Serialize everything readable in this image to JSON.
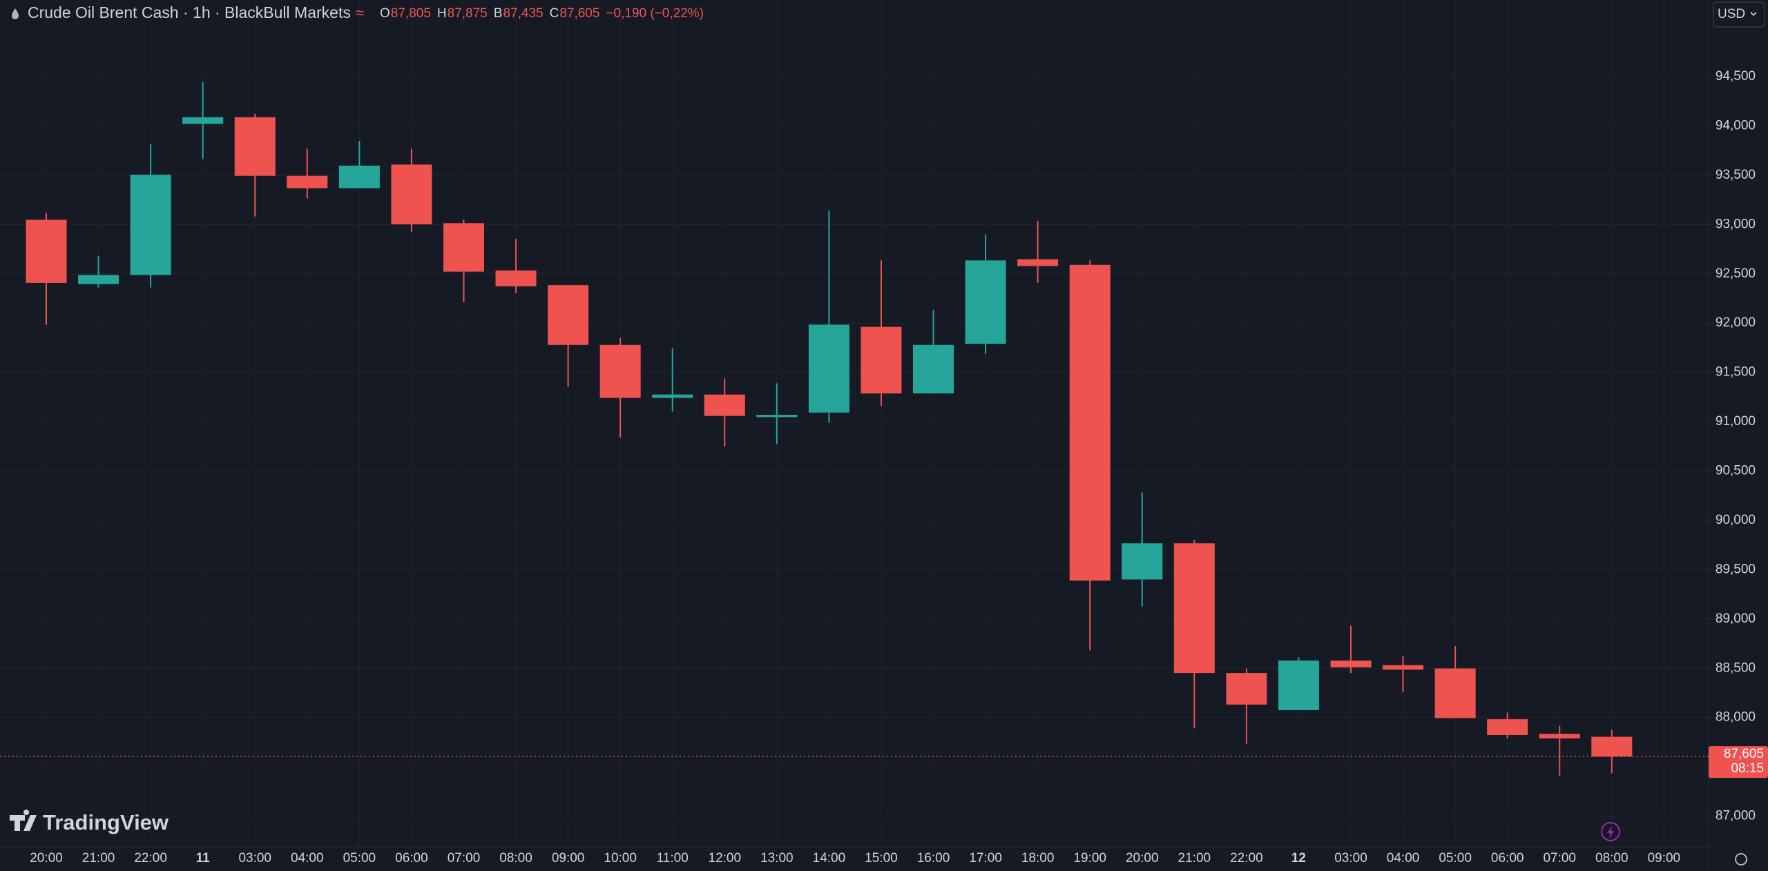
{
  "chart_data": {
    "type": "candlestick",
    "title": "Crude Oil Brent Cash · 1h · BlackBull Markets",
    "legend_ohlc": [
      {
        "key": "O",
        "value": "87,805"
      },
      {
        "key": "H",
        "value": "87,875"
      },
      {
        "key": "B",
        "value": "87,435"
      },
      {
        "key": "C",
        "value": "87,605"
      }
    ],
    "change": "−0,190 (−0,22%)",
    "currency": "USD",
    "brand": "TradingView",
    "categories": [
      "20:00",
      "21:00",
      "22:00",
      "11",
      "03:00",
      "04:00",
      "05:00",
      "06:00",
      "07:00",
      "08:00",
      "09:00",
      "10:00",
      "11:00",
      "12:00",
      "13:00",
      "14:00",
      "15:00",
      "16:00",
      "17:00",
      "18:00",
      "19:00",
      "20:00",
      "21:00",
      "22:00",
      "12",
      "03:00",
      "04:00",
      "05:00",
      "06:00",
      "07:00",
      "08:00",
      "09:00"
    ],
    "open": [
      93.048,
      92.396,
      92.488,
      94.02,
      94.088,
      93.494,
      93.368,
      93.608,
      93.014,
      92.534,
      92.385,
      91.779,
      91.242,
      91.276,
      91.047,
      91.093,
      91.962,
      91.287,
      91.79,
      92.648,
      92.591,
      89.401,
      89.767,
      88.452,
      88.075,
      88.578,
      88.532,
      88.498,
      87.983,
      87.835,
      87.805,
      null
    ],
    "high": [
      93.117,
      92.682,
      93.814,
      94.443,
      94.123,
      93.768,
      93.848,
      93.768,
      93.048,
      92.854,
      92.385,
      91.848,
      91.745,
      91.436,
      91.39,
      93.14,
      92.636,
      92.133,
      92.899,
      93.037,
      92.636,
      90.281,
      89.801,
      88.498,
      88.612,
      88.932,
      88.624,
      88.726,
      88.052,
      87.915,
      87.875,
      null
    ],
    "low": [
      91.985,
      92.362,
      92.362,
      93.665,
      93.082,
      93.265,
      93.368,
      92.922,
      92.213,
      92.305,
      91.356,
      90.841,
      91.104,
      90.75,
      90.773,
      90.99,
      91.162,
      91.287,
      91.688,
      92.408,
      88.681,
      89.127,
      87.892,
      87.732,
      88.075,
      88.452,
      88.258,
      87.995,
      87.789,
      87.412,
      87.435,
      null
    ],
    "close": [
      92.408,
      92.488,
      93.505,
      94.088,
      93.494,
      93.368,
      93.597,
      93.002,
      92.522,
      92.374,
      91.779,
      91.242,
      91.276,
      91.059,
      91.07,
      91.985,
      91.287,
      91.779,
      92.636,
      92.579,
      89.389,
      89.767,
      88.452,
      88.132,
      88.578,
      88.509,
      88.486,
      87.995,
      87.823,
      87.789,
      87.605,
      null
    ],
    "up_color": "#26a69a",
    "down_color": "#ef5350",
    "ylim": [
      86.703,
      95.277
    ],
    "yticks": [
      {
        "value": 87,
        "label": "87,000"
      },
      {
        "value": 87.5,
        "label": "87,500"
      },
      {
        "value": 88,
        "label": "88,000"
      },
      {
        "value": 88.5,
        "label": "88,500"
      },
      {
        "value": 89,
        "label": "89,000"
      },
      {
        "value": 89.5,
        "label": "89,500"
      },
      {
        "value": 90,
        "label": "90,000"
      },
      {
        "value": 90.5,
        "label": "90,500"
      },
      {
        "value": 91,
        "label": "91,000"
      },
      {
        "value": 91.5,
        "label": "91,500"
      },
      {
        "value": 92,
        "label": "92,000"
      },
      {
        "value": 92.5,
        "label": "92,500"
      },
      {
        "value": 93,
        "label": "93,000"
      },
      {
        "value": 93.5,
        "label": "93,500"
      },
      {
        "value": 94,
        "label": "94,000"
      },
      {
        "value": 94.5,
        "label": "94,500"
      }
    ],
    "last_price": {
      "value": 87.605,
      "label": "87,605"
    },
    "countdown": "08:15",
    "grid": true
  }
}
